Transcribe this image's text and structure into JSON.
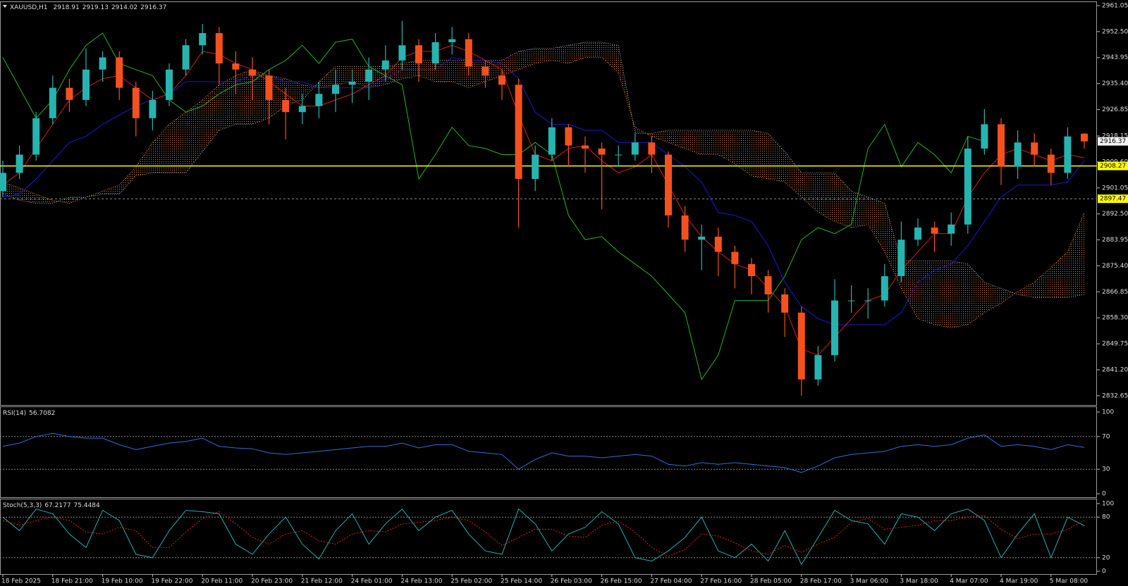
{
  "chart_data": [
    {
      "type": "candlestick",
      "symbol": "XAUUSD,H1",
      "categories": [
        "18 Feb 2025",
        null,
        null,
        "18 Feb 21:00",
        null,
        null,
        "19 Feb 10:00",
        null,
        null,
        "19 Feb 22:00",
        null,
        null,
        "20 Feb 11:00",
        null,
        null,
        "20 Feb 23:00",
        null,
        null,
        "21 Feb 12:00",
        null,
        null,
        "24 Feb 01:00",
        null,
        null,
        "24 Feb 13:00",
        null,
        null,
        "25 Feb 02:00",
        null,
        null,
        "25 Feb 14:00",
        null,
        null,
        "26 Feb 03:00",
        null,
        null,
        "26 Feb 15:00",
        null,
        null,
        "27 Feb 04:00",
        null,
        null,
        "27 Feb 16:00",
        null,
        null,
        "28 Feb 05:00",
        null,
        null,
        "28 Feb 17:00",
        null,
        null,
        "3 Mar 06:00",
        null,
        null,
        "3 Mar 18:00",
        null,
        null,
        "4 Mar 07:00",
        null,
        null,
        "4 Mar 19:00",
        null,
        null,
        "5 Mar 08:00",
        null,
        null
      ],
      "open": [
        2900,
        2906,
        2912,
        2924,
        2934,
        2930,
        2940,
        2944,
        2934,
        2924,
        2930,
        2940,
        2948,
        2952,
        2942,
        2940,
        2938,
        2930,
        2926,
        2928,
        2932,
        2935,
        2936,
        2940,
        2943,
        2948,
        2942,
        2949,
        2950,
        2941,
        2938,
        2935,
        2904,
        2912,
        2921,
        2915,
        2914,
        2912,
        2912,
        2916,
        2912,
        2892,
        2884,
        2885,
        2880,
        2876,
        2872,
        2866,
        2860,
        2838,
        2846,
        2864,
        2864,
        2864,
        2872,
        2884,
        2888,
        2886,
        2889,
        2914,
        2922,
        2908,
        2916,
        2912,
        2906,
        2918.91
      ],
      "high": [
        2910,
        2915,
        2926,
        2938,
        2937,
        2947,
        2946,
        2946,
        2936,
        2933,
        2942,
        2950,
        2955,
        2954,
        2946,
        2944,
        2940,
        2934,
        2932,
        2936,
        2940,
        2940,
        2944,
        2948,
        2956,
        2950,
        2952,
        2954,
        2952,
        2943,
        2940,
        2937,
        2915,
        2924,
        2922,
        2918,
        2916,
        2915,
        2919,
        2918,
        2913,
        2895,
        2889,
        2888,
        2882,
        2878,
        2874,
        2868,
        2862,
        2849,
        2871,
        2869,
        2868,
        2876,
        2890,
        2891,
        2890,
        2893,
        2918,
        2927,
        2924,
        2920,
        2919,
        2914,
        2921,
        2919.13
      ],
      "low": [
        2898,
        2904,
        2910,
        2922,
        2926,
        2928,
        2936,
        2930,
        2918,
        2920,
        2928,
        2938,
        2945,
        2935,
        2932,
        2930,
        2922,
        2917,
        2922,
        2924,
        2926,
        2929,
        2930,
        2936,
        2940,
        2936,
        2940,
        2945,
        2938,
        2934,
        2930,
        2888,
        2900,
        2910,
        2908,
        2906,
        2894,
        2908,
        2910,
        2906,
        2888,
        2880,
        2874,
        2872,
        2868,
        2866,
        2860,
        2852,
        2832.65,
        2836,
        2844,
        2860,
        2858,
        2862,
        2870,
        2882,
        2880,
        2882,
        2886,
        2912,
        2902,
        2904,
        2908,
        2902,
        2904,
        2914.02
      ],
      "close": [
        2906,
        2912,
        2924,
        2934,
        2930,
        2940,
        2944,
        2934,
        2924,
        2930,
        2940,
        2948,
        2952,
        2942,
        2940,
        2938,
        2930,
        2926,
        2928,
        2932,
        2935,
        2936,
        2940,
        2943,
        2948,
        2942,
        2949,
        2950,
        2941,
        2938,
        2935,
        2904,
        2912,
        2921,
        2915,
        2914,
        2912,
        2912,
        2916,
        2912,
        2892,
        2884,
        2885,
        2880,
        2876,
        2872,
        2866,
        2860,
        2838,
        2846,
        2864,
        2864,
        2864,
        2872,
        2884,
        2888,
        2886,
        2889,
        2914,
        2922,
        2908,
        2916,
        2912,
        2906,
        2918,
        2916.37
      ],
      "up_color": "#26b4b0",
      "down_color": "#f4511e",
      "ichimoku": {
        "span_a": {
          "color": "#d8824a",
          "values": [
            2903,
            2901,
            2899,
            2897,
            2896,
            2898,
            2900,
            2902,
            2908,
            2916,
            2922,
            2926,
            2930,
            2935,
            2938,
            2940,
            2938,
            2937,
            2935,
            2934,
            2935,
            2936,
            2934,
            2935,
            2937,
            2938,
            2936,
            2936,
            2934,
            2936,
            2938,
            2940,
            2942,
            2943,
            2942,
            2944,
            2944,
            2939,
            2921,
            2918,
            2916,
            2914,
            2912,
            2912,
            2909,
            2905,
            2904,
            2903,
            2898,
            2893,
            2890,
            2888,
            2889,
            2880,
            2868,
            2858,
            2856,
            2855,
            2856,
            2860,
            2863,
            2867,
            2870,
            2875,
            2880,
            2893
          ]
        },
        "span_b": {
          "color": "#b0b0b0",
          "values": [
            2899,
            2897,
            2896,
            2896,
            2898,
            2898,
            2899,
            2899,
            2905,
            2906,
            2906,
            2906,
            2913,
            2920,
            2922,
            2922,
            2924,
            2928,
            2930,
            2936,
            2941,
            2941,
            2941,
            2941,
            2942,
            2943,
            2943,
            2943,
            2943,
            2943,
            2943,
            2946,
            2947,
            2947,
            2948,
            2949,
            2949,
            2948,
            2919,
            2919,
            2920,
            2920,
            2920,
            2920,
            2920,
            2920,
            2919,
            2913,
            2906,
            2906,
            2906,
            2900,
            2898,
            2896,
            2877,
            2877,
            2877,
            2877,
            2876,
            2870,
            2868,
            2866,
            2865,
            2865,
            2865,
            2866
          ]
        },
        "chikou": {
          "color": "#22b522",
          "values": [
            2944,
            2934,
            2924,
            2930,
            2940,
            2948,
            2952,
            2942,
            2940,
            2938,
            2930,
            2926,
            2928,
            2932,
            2935,
            2936,
            2940,
            2943,
            2948,
            2942,
            2949,
            2950,
            2941,
            2938,
            2935,
            2904,
            2912,
            2921,
            2915,
            2914,
            2912,
            2912,
            2916,
            2912,
            2892,
            2884,
            2885,
            2880,
            2876,
            2872,
            2866,
            2860,
            2838,
            2846,
            2864,
            2864,
            2864,
            2872,
            2884,
            2888,
            2886,
            2889,
            2914,
            2922,
            2908,
            2916,
            2912,
            2906,
            2918,
            2916.37,
            null,
            null,
            null,
            null,
            null,
            null
          ]
        },
        "kijun": {
          "color": "#1a1ad0",
          "values": [
            2898,
            2899,
            2904,
            2910,
            2916,
            2918,
            2922,
            2925,
            2928,
            2930,
            2932,
            2936,
            2936,
            2936,
            2936,
            2938,
            2938,
            2936,
            2936,
            2934,
            2934,
            2934,
            2934,
            2937,
            2940,
            2940,
            2940,
            2944,
            2943,
            2943,
            2942,
            2937,
            2926,
            2922,
            2922,
            2920,
            2920,
            2916,
            2916,
            2916,
            2912,
            2908,
            2903,
            2893,
            2892,
            2890,
            2882,
            2870,
            2862,
            2858,
            2856,
            2856,
            2856,
            2856,
            2860,
            2870,
            2874,
            2876,
            2882,
            2890,
            2898,
            2902,
            2902,
            2902,
            2903,
            2910
          ]
        },
        "tenkan": {
          "color": "#d41e1e",
          "values": [
            2902,
            2906,
            2914,
            2922,
            2930,
            2934,
            2937,
            2938,
            2934,
            2930,
            2932,
            2938,
            2946,
            2945,
            2942,
            2940,
            2936,
            2932,
            2928,
            2928,
            2930,
            2932,
            2935,
            2938,
            2944,
            2946,
            2946,
            2948,
            2946,
            2943,
            2940,
            2925,
            2912,
            2910,
            2914,
            2915,
            2910,
            2906,
            2908,
            2912,
            2902,
            2892,
            2885,
            2880,
            2876,
            2874,
            2868,
            2862,
            2848,
            2846,
            2852,
            2858,
            2864,
            2866,
            2874,
            2880,
            2886,
            2886,
            2898,
            2906,
            2912,
            2914,
            2912,
            2910,
            2912,
            2911
          ]
        }
      },
      "hlines": [
        {
          "value": 2908.27,
          "color": "#ffff00",
          "style": "solid"
        },
        {
          "value": 2897.47,
          "color": "#8a8a8a",
          "style": "dashed",
          "label_color": "#ffff00"
        }
      ],
      "ylim": [
        2829.6,
        2962.2
      ],
      "yticks": [
        2961.05,
        {
          "value": 2952.5,
          "label": "2952.50"
        },
        2943.95,
        {
          "value": 2935.4,
          "label": "2935.40"
        },
        2926.85,
        2918.15,
        {
          "value": 2909.6,
          "label": "2909.60"
        },
        2901.05,
        {
          "value": 2892.5,
          "label": "2892.50"
        },
        2883.95,
        {
          "value": 2875.4,
          "label": "2875.40"
        },
        2866.85,
        {
          "value": 2858.3,
          "label": "2858.30"
        },
        2849.75,
        {
          "value": 2841.2,
          "label": "2841.20"
        },
        2832.65
      ],
      "grid": false
    },
    {
      "type": "line",
      "title": "RSI(14)",
      "color": "#2a6fd8",
      "values": [
        58,
        62,
        70,
        74,
        70,
        68,
        68,
        60,
        54,
        58,
        62,
        64,
        68,
        58,
        56,
        55,
        50,
        48,
        50,
        52,
        54,
        56,
        58,
        58,
        62,
        56,
        60,
        60,
        52,
        50,
        48,
        30,
        42,
        50,
        46,
        46,
        44,
        46,
        48,
        46,
        36,
        34,
        38,
        36,
        38,
        36,
        34,
        32,
        26,
        34,
        44,
        48,
        50,
        52,
        58,
        60,
        58,
        60,
        68,
        72,
        58,
        60,
        58,
        54,
        60,
        56.7082
      ],
      "ylim": [
        0,
        100
      ],
      "yticks": [
        0,
        30,
        70,
        100
      ],
      "levels": [
        30,
        70
      ]
    },
    {
      "type": "line",
      "title": "Stoch(5,3,3)",
      "series": [
        {
          "color": "#20b2aa",
          "style": "solid",
          "values": [
            80,
            60,
            92,
            85,
            55,
            35,
            90,
            75,
            25,
            20,
            60,
            90,
            88,
            85,
            40,
            25,
            55,
            80,
            40,
            18,
            60,
            85,
            40,
            70,
            92,
            60,
            80,
            90,
            55,
            30,
            25,
            92,
            70,
            30,
            55,
            65,
            88,
            70,
            20,
            15,
            30,
            50,
            80,
            30,
            20,
            40,
            15,
            60,
            10,
            50,
            90,
            75,
            70,
            40,
            85,
            80,
            60,
            85,
            92,
            75,
            20,
            55,
            85,
            20,
            80,
            67.2177
          ]
        },
        {
          "color": "#e02020",
          "style": "dashed",
          "values": [
            75,
            68,
            75,
            80,
            75,
            58,
            55,
            65,
            60,
            35,
            35,
            58,
            78,
            88,
            70,
            50,
            40,
            55,
            60,
            45,
            40,
            55,
            60,
            58,
            70,
            72,
            75,
            80,
            75,
            58,
            38,
            50,
            62,
            62,
            52,
            50,
            68,
            74,
            58,
            35,
            22,
            32,
            55,
            52,
            42,
            30,
            25,
            38,
            28,
            40,
            50,
            72,
            78,
            62,
            65,
            68,
            75,
            75,
            80,
            82,
            62,
            48,
            55,
            55,
            62,
            75.4484
          ]
        }
      ],
      "ylim": [
        0,
        100
      ],
      "yticks": [
        0,
        20,
        80,
        100
      ],
      "levels": [
        20,
        80
      ]
    }
  ]
}
